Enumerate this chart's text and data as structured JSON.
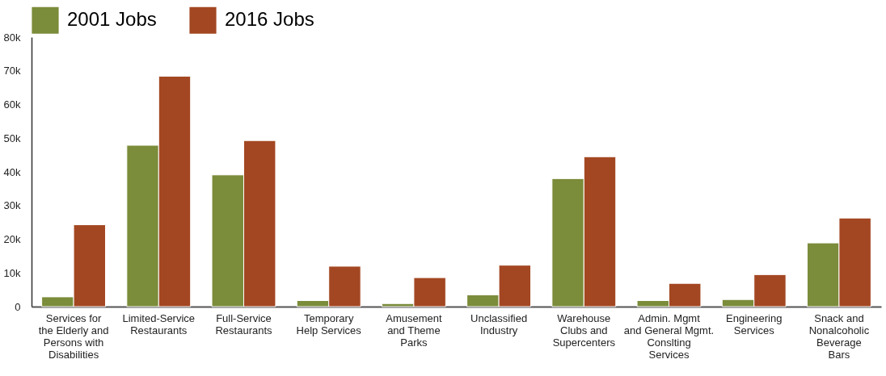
{
  "chart_data": {
    "type": "bar",
    "categories": [
      "Services for\nthe Elderly and\nPersons with\nDisabilities",
      "Limited-Service\nRestaurants",
      "Full-Service\nRestaurants",
      "Temporary\nHelp Services",
      "Amusement\nand Theme\nParks",
      "Unclassified\nIndustry",
      "Warehouse\nClubs and\nSupercenters",
      "Admin. Mgmt\nand General Mgmt.\nConslting\nServices",
      "Engineering\nServices",
      "Snack and\nNonalcoholic\nBeverage\nBars"
    ],
    "series": [
      {
        "name": "2001 Jobs",
        "color": "#7b8c3a",
        "values": [
          2900,
          47900,
          39100,
          1800,
          900,
          3500,
          38000,
          1800,
          2100,
          18900
        ]
      },
      {
        "name": "2016 Jobs",
        "color": "#a34722",
        "values": [
          24300,
          68400,
          49300,
          12000,
          8600,
          12300,
          44500,
          6900,
          9500,
          26300
        ]
      }
    ],
    "ylim": [
      0,
      80000
    ],
    "yticks": [
      0,
      {
        "value": 10000,
        "label": "10k"
      },
      {
        "value": 20000,
        "label": "20k"
      },
      {
        "value": 30000,
        "label": "30k"
      },
      {
        "value": 40000,
        "label": "40k"
      },
      {
        "value": 50000,
        "label": "50k"
      },
      {
        "value": 60000,
        "label": "60k"
      },
      {
        "value": 70000,
        "label": "70k"
      },
      {
        "value": 80000,
        "label": "80k"
      }
    ],
    "grid": false,
    "legend": "top left"
  }
}
